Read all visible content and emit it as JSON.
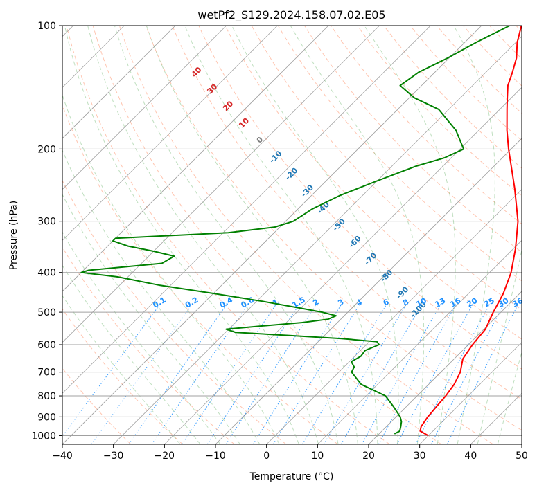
{
  "chart_data": {
    "type": "line",
    "title": "wetPf2_S129.2024.158.07.02.E05",
    "xlabel": "Temperature (°C)",
    "ylabel": "Pressure (hPa)",
    "xlim": [
      -40,
      50
    ],
    "ylim": [
      1050,
      100
    ],
    "y_scale": "log",
    "grid": true,
    "x_ticks": [
      -40,
      -30,
      -20,
      -10,
      0,
      10,
      20,
      30,
      40,
      50
    ],
    "y_ticks": [
      100,
      200,
      300,
      400,
      500,
      600,
      700,
      800,
      900,
      1000
    ],
    "series": [
      {
        "role": "temperature",
        "color": "#ff0000",
        "pressure": [
          1000,
          975,
          950,
          925,
          900,
          850,
          800,
          750,
          700,
          650,
          600,
          550,
          500,
          450,
          400,
          350,
          300,
          250,
          200,
          180,
          160,
          150,
          140,
          130,
          120,
          110,
          100
        ],
        "values": [
          30.0,
          27.5,
          26.8,
          26.5,
          26.2,
          25.9,
          25.6,
          25.0,
          23.8,
          21.7,
          20.8,
          20.3,
          18.5,
          16.8,
          14.2,
          10.4,
          5.5,
          -1.5,
          -10.5,
          -14.5,
          -18.6,
          -20.8,
          -23.1,
          -24.8,
          -26.8,
          -29.7,
          -32.2
        ]
      },
      {
        "role": "dewpoint",
        "color": "#008000",
        "pressure": [
          990,
          975,
          950,
          925,
          900,
          850,
          800,
          750,
          700,
          680,
          660,
          640,
          620,
          600,
          590,
          580,
          570,
          560,
          550,
          540,
          530,
          520,
          510,
          500,
          490,
          470,
          450,
          430,
          410,
          400,
          395,
          380,
          365,
          355,
          345,
          335,
          330,
          320,
          310,
          300,
          280,
          260,
          240,
          220,
          210,
          200,
          180,
          160,
          150,
          140,
          130,
          120,
          110,
          100
        ],
        "values": [
          23.0,
          23.5,
          22.8,
          22.0,
          20.8,
          17.5,
          13.8,
          6.8,
          2.5,
          2.0,
          0.4,
          1.2,
          0.9,
          2.5,
          1.5,
          -6.0,
          -16.5,
          -28.0,
          -30.5,
          -24.0,
          -17.0,
          -12.5,
          -11.6,
          -15.0,
          -19.5,
          -29.0,
          -40.0,
          -52.0,
          -62.0,
          -70.0,
          -69.0,
          -56.0,
          -55.0,
          -60.0,
          -66.0,
          -70.0,
          -70.0,
          -49.0,
          -41.0,
          -38.5,
          -37.2,
          -34.5,
          -30.2,
          -25.2,
          -21.3,
          -19.3,
          -24.5,
          -32.0,
          -39.0,
          -44.2,
          -43.2,
          -40.3,
          -37.8,
          -34.5
        ]
      }
    ],
    "isotherm_labels": [
      {
        "text": "-100",
        "color": "#1f77b4"
      },
      {
        "text": "-90",
        "color": "#1f77b4"
      },
      {
        "text": "-80",
        "color": "#1f77b4"
      },
      {
        "text": "-70",
        "color": "#1f77b4"
      },
      {
        "text": "-60",
        "color": "#1f77b4"
      },
      {
        "text": "-50",
        "color": "#1f77b4"
      },
      {
        "text": "-40",
        "color": "#1f77b4"
      },
      {
        "text": "-30",
        "color": "#1f77b4"
      },
      {
        "text": "-20",
        "color": "#1f77b4"
      },
      {
        "text": "-10",
        "color": "#1f77b4"
      },
      {
        "text": "0",
        "color": "#808080"
      },
      {
        "text": "10",
        "color": "#d62728"
      },
      {
        "text": "20",
        "color": "#d62728"
      },
      {
        "text": "30",
        "color": "#d62728"
      },
      {
        "text": "40",
        "color": "#d62728"
      }
    ],
    "mixing_ratio_labels": [
      "0.1",
      "0.2",
      "0.4",
      "0.6",
      "1",
      "1.5",
      "2",
      "3",
      "4",
      "6",
      "8",
      "10",
      "13",
      "16",
      "20",
      "25",
      "30",
      "36"
    ],
    "mixing_ratio_color": "#1e90ff",
    "dry_adiabat_color": "#ff7f50",
    "moist_adiabat_color": "#7fbf7f"
  }
}
